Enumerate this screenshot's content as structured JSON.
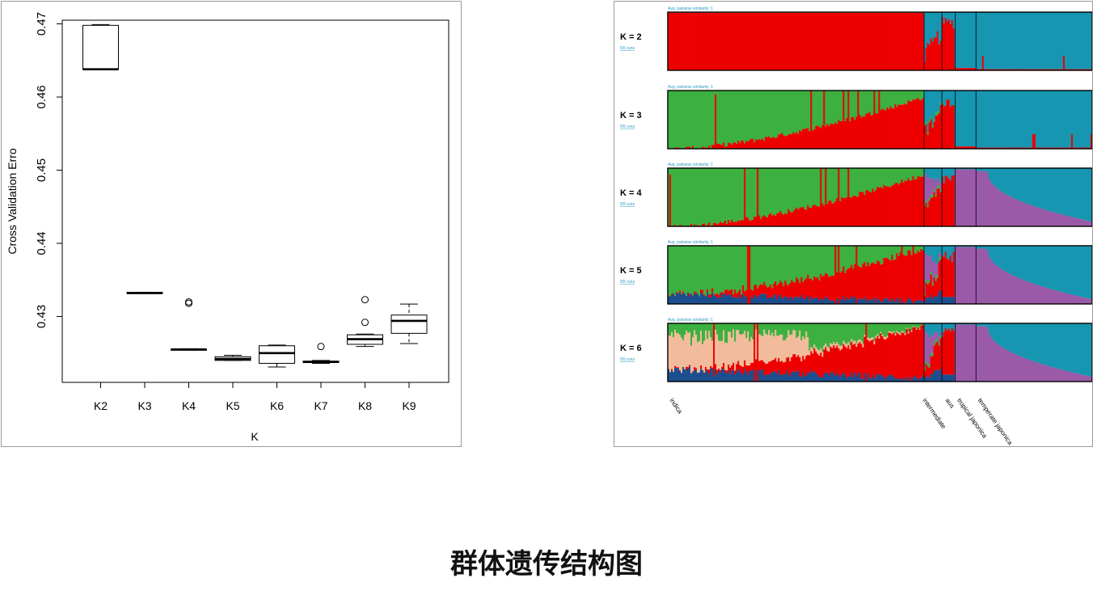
{
  "caption": "群体遗传结构图",
  "chart_data": [
    {
      "type": "box",
      "xlabel": "K",
      "ylabel": "Cross Validation Erro",
      "categories": [
        "K2",
        "K3",
        "K4",
        "K5",
        "K6",
        "K7",
        "K8",
        "K9"
      ],
      "yticks": [
        "0.43",
        "0.44",
        "0.45",
        "0.46",
        "0.47"
      ],
      "ylim": [
        0.421,
        0.4705
      ],
      "boxes": [
        {
          "label": "K2",
          "min": 0.4638,
          "q1": 0.4638,
          "median": 0.4638,
          "q3": 0.4698,
          "max": 0.4699,
          "outliers": []
        },
        {
          "label": "K3",
          "min": 0.4332,
          "q1": 0.4332,
          "median": 0.4332,
          "q3": 0.4333,
          "max": 0.4333,
          "outliers": []
        },
        {
          "label": "K4",
          "min": 0.4254,
          "q1": 0.4254,
          "median": 0.4255,
          "q3": 0.4255,
          "max": 0.4256,
          "outliers": [
            0.4318,
            0.432
          ]
        },
        {
          "label": "K5",
          "min": 0.424,
          "q1": 0.424,
          "median": 0.4242,
          "q3": 0.4245,
          "max": 0.4247,
          "outliers": []
        },
        {
          "label": "K6",
          "min": 0.4231,
          "q1": 0.4236,
          "median": 0.425,
          "q3": 0.426,
          "max": 0.4261,
          "outliers": []
        },
        {
          "label": "K7",
          "min": 0.4236,
          "q1": 0.4237,
          "median": 0.4238,
          "q3": 0.4239,
          "max": 0.424,
          "outliers": [
            0.4259
          ]
        },
        {
          "label": "K8",
          "min": 0.4259,
          "q1": 0.4262,
          "median": 0.4269,
          "q3": 0.4275,
          "max": 0.4276,
          "outliers": [
            0.4292,
            0.4323
          ]
        },
        {
          "label": "K9",
          "min": 0.4263,
          "q1": 0.4277,
          "median": 0.4294,
          "q3": 0.4302,
          "max": 0.4317,
          "outliers": []
        }
      ]
    },
    {
      "type": "stacked_bar_structure",
      "header_text": "Avg. pairwise similarity: 1",
      "sub_text": "5/5 runs",
      "colors": {
        "red": "#ee0000",
        "teal": "#1696b0",
        "green": "#3cb040",
        "purple": "#9a5aa8",
        "navy": "#1a4e8e",
        "peach": "#f2bc9c"
      },
      "groups": [
        "indica",
        "intermediate",
        "aus",
        "tropical japonica",
        "temperate japonica"
      ],
      "group_bounds": [
        0.6039,
        0.6459,
        0.6774,
        0.7262,
        1.0
      ],
      "rows": [
        {
          "label": "K = 2"
        },
        {
          "label": "K = 3"
        },
        {
          "label": "K = 4"
        },
        {
          "label": "K = 5"
        },
        {
          "label": "K = 6"
        }
      ]
    }
  ]
}
